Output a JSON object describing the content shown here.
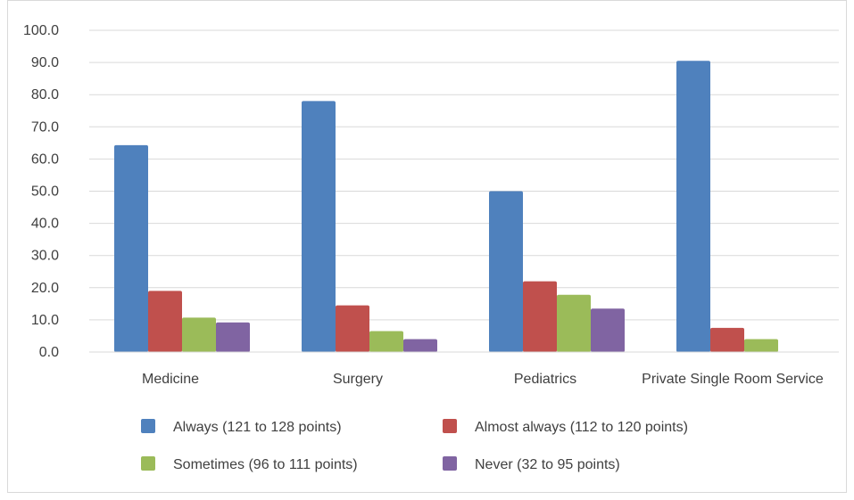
{
  "chart_data": {
    "type": "bar",
    "title": "",
    "xlabel": "",
    "ylabel": "",
    "categories": [
      "Medicine",
      "Surgery",
      "Pediatrics",
      "Private Single Room Service"
    ],
    "series": [
      {
        "name": "Always (121 to 128 points)",
        "color": "#4F81BD",
        "values": [
          64.3,
          78.0,
          50.0,
          90.5
        ]
      },
      {
        "name": "Almost always (112 to 120 points)",
        "color": "#C0504D",
        "values": [
          19.0,
          14.5,
          22.0,
          7.5
        ]
      },
      {
        "name": "Sometimes (96 to 111 points)",
        "color": "#9BBB59",
        "values": [
          10.7,
          6.5,
          17.8,
          4.0
        ]
      },
      {
        "name": "Never (32 to 95 points)",
        "color": "#8064A2",
        "values": [
          9.2,
          4.0,
          13.5,
          null
        ]
      }
    ],
    "ylim": [
      0,
      100
    ],
    "yticks": [
      "0.0",
      "10.0",
      "20.0",
      "30.0",
      "40.0",
      "50.0",
      "60.0",
      "70.0",
      "80.0",
      "90.0",
      "100.0"
    ],
    "grid": true,
    "legend_position": "bottom"
  }
}
